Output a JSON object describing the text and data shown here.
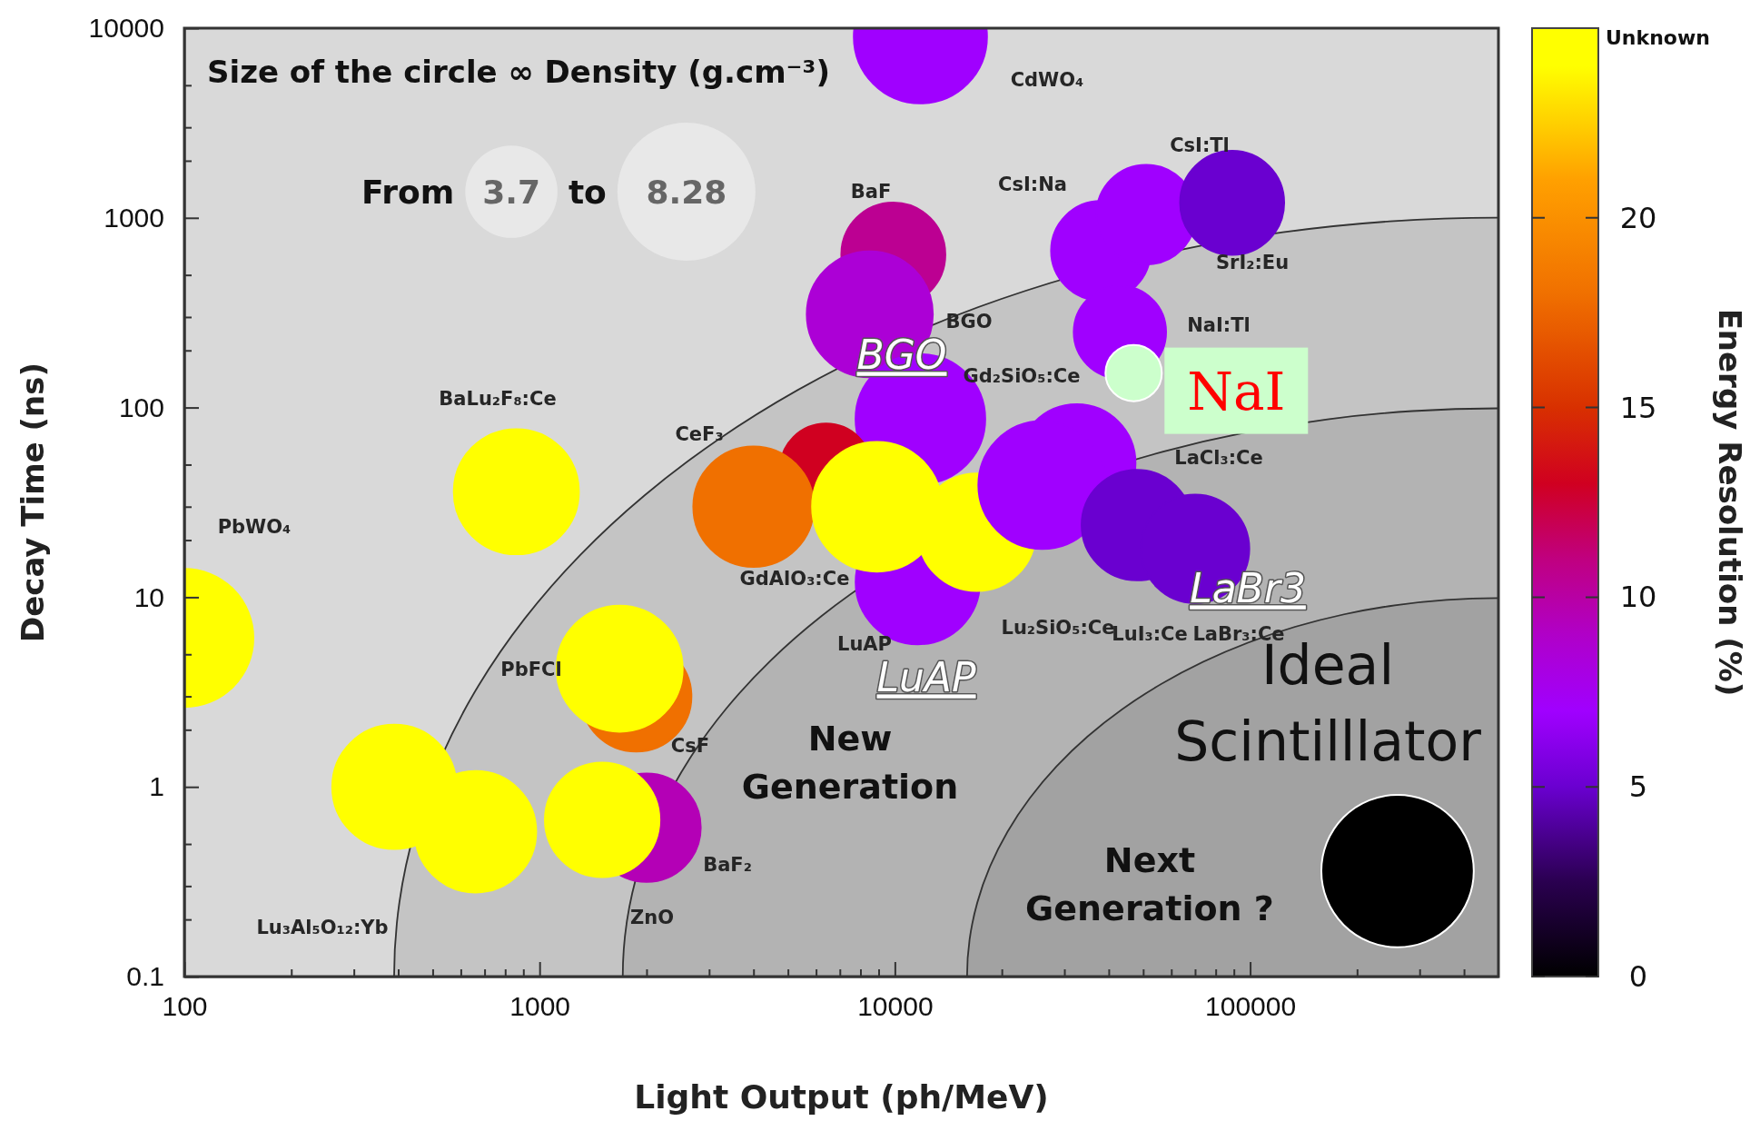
{
  "chart_data": {
    "type": "bubble",
    "xlabel": "Light Output (ph/MeV)",
    "ylabel": "Decay Time (ns)",
    "clabel": "Energy Resolution (%)",
    "legend_title": "Size of the circle ∞ Density (g.cm⁻³)",
    "size_legend": [
      3.7,
      8.28
    ],
    "log": "xy",
    "grid": false,
    "marker": "circle",
    "xlim": [
      100,
      500000
    ],
    "ylim": [
      0.1,
      10000
    ],
    "xticks": [
      100,
      {
        "value": 200,
        "label": null
      },
      {
        "value": 300,
        "label": null
      },
      {
        "value": 400,
        "label": null
      },
      {
        "value": 500,
        "label": null
      },
      {
        "value": 600,
        "label": null
      },
      {
        "value": 700,
        "label": null
      },
      {
        "value": 800,
        "label": null
      },
      {
        "value": 900,
        "label": null
      },
      1000,
      {
        "value": 2000,
        "label": null
      },
      {
        "value": 3000,
        "label": null
      },
      {
        "value": 4000,
        "label": null
      },
      {
        "value": 5000,
        "label": null
      },
      {
        "value": 6000,
        "label": null
      },
      {
        "value": 7000,
        "label": null
      },
      {
        "value": 8000,
        "label": null
      },
      {
        "value": 9000,
        "label": null
      },
      10000,
      {
        "value": 20000,
        "label": null
      },
      {
        "value": 30000,
        "label": null
      },
      {
        "value": 40000,
        "label": null
      },
      {
        "value": 50000,
        "label": null
      },
      {
        "value": 60000,
        "label": null
      },
      {
        "value": 70000,
        "label": null
      },
      {
        "value": 80000,
        "label": null
      },
      {
        "value": 90000,
        "label": null
      },
      100000,
      {
        "value": 200000,
        "label": null
      },
      {
        "value": 300000,
        "label": null
      },
      {
        "value": 400000,
        "label": null
      }
    ],
    "yticks": [
      0.1,
      {
        "value": 0.2,
        "label": null
      },
      {
        "value": 0.3,
        "label": null
      },
      {
        "value": 0.5,
        "label": null
      },
      1,
      {
        "value": 2,
        "label": null
      },
      {
        "value": 3,
        "label": null
      },
      {
        "value": 5,
        "label": null
      },
      10,
      {
        "value": 20,
        "label": null
      },
      {
        "value": 30,
        "label": null
      },
      {
        "value": 50,
        "label": null
      },
      100,
      {
        "value": 200,
        "label": null
      },
      {
        "value": 300,
        "label": null
      },
      {
        "value": 500,
        "label": null
      },
      1000,
      {
        "value": 2000,
        "label": null
      },
      {
        "value": 3000,
        "label": null
      },
      {
        "value": 5000,
        "label": null
      },
      10000
    ],
    "clim": [
      0,
      25
    ],
    "cticks": [
      0,
      5,
      10,
      15,
      20
    ],
    "series": [
      {
        "x": [
          100,
          860,
          390,
          660,
          1870,
          1680,
          2000,
          1500,
          11800,
          9900,
          8500,
          38000,
          51000,
          89000,
          43000,
          11600,
          11800,
          6400,
          4000,
          8900,
          17000,
          32500,
          26000,
          48000,
          70000,
          260000
        ],
        "values": [
          6.1,
          36,
          1.0,
          0.58,
          3.0,
          4.2,
          0.61,
          0.67,
          9000,
          640,
          310,
          670,
          1040,
          1200,
          250,
          12,
          87,
          47,
          30,
          30,
          22,
          51,
          39,
          24,
          18,
          0.36
        ],
        "sizes": [
          8.28,
          6.8,
          6.7,
          6.4,
          5.3,
          6.9,
          5.1,
          5.7,
          7.7,
          4.7,
          6.9,
          4.3,
          4.3,
          4.7,
          3.7,
          6.7,
          7.3,
          3.7,
          6.3,
          7.3,
          6.0,
          6.0,
          7.1,
          5.3,
          5.1,
          10.1
        ],
        "colors": [
          "#ffff00",
          "#ffff00",
          "#ffff00",
          "#ffff00",
          "#f07000",
          "#ffff00",
          "#b400b6",
          "#ffff00",
          "#a000ff",
          "#bc0092",
          "#ac00d6",
          "#a000ff",
          "#a000ff",
          "#6a00d0",
          "#a000ff",
          "#a000ff",
          "#a000ff",
          "#d00020",
          "#f07000",
          "#ffff00",
          "#ffff00",
          "#a000ff",
          "#a000ff",
          "#6a00d0",
          "#6a00d0",
          "#000000"
        ],
        "cvalues": [
          24.75,
          24.75,
          24.75,
          24.75,
          18,
          24.75,
          9.5,
          24.75,
          7,
          10.5,
          8.5,
          7,
          7,
          5,
          7,
          7,
          7,
          13,
          18,
          24.75,
          24.75,
          7,
          7,
          5,
          5,
          0
        ]
      },
      {
        "type": "scatter",
        "color": "#ccffcc",
        "x": [
          47000
        ],
        "values": [
          152
        ]
      }
    ],
    "annotations": [
      "CdWO₄",
      "CsI:Tl",
      "CsI:Na",
      "BaF",
      "SrI₂:Eu",
      "BGO",
      "NaI:Tl",
      "Gd₂SiO₅:Ce",
      "BaLu₂F₈:Ce",
      "CeF₃",
      "LaCl₃:Ce",
      "PbWO₄",
      "GdAlO₃:Ce",
      "Lu₂SiO₅:Ce",
      "LuI₃:Ce",
      "LaBr₃:Ce",
      "LuAP",
      "PbFCl",
      "CsF",
      "BaF₂",
      "ZnO",
      "Lu₃Al₅O₁₂:Yb",
      "BGO",
      "LuAP",
      "LaBr3",
      "New\nGeneration",
      "Next\nGeneration ?",
      "Ideal\nScintilllator",
      "NaI",
      "From",
      "to",
      "Unknown"
    ]
  }
}
